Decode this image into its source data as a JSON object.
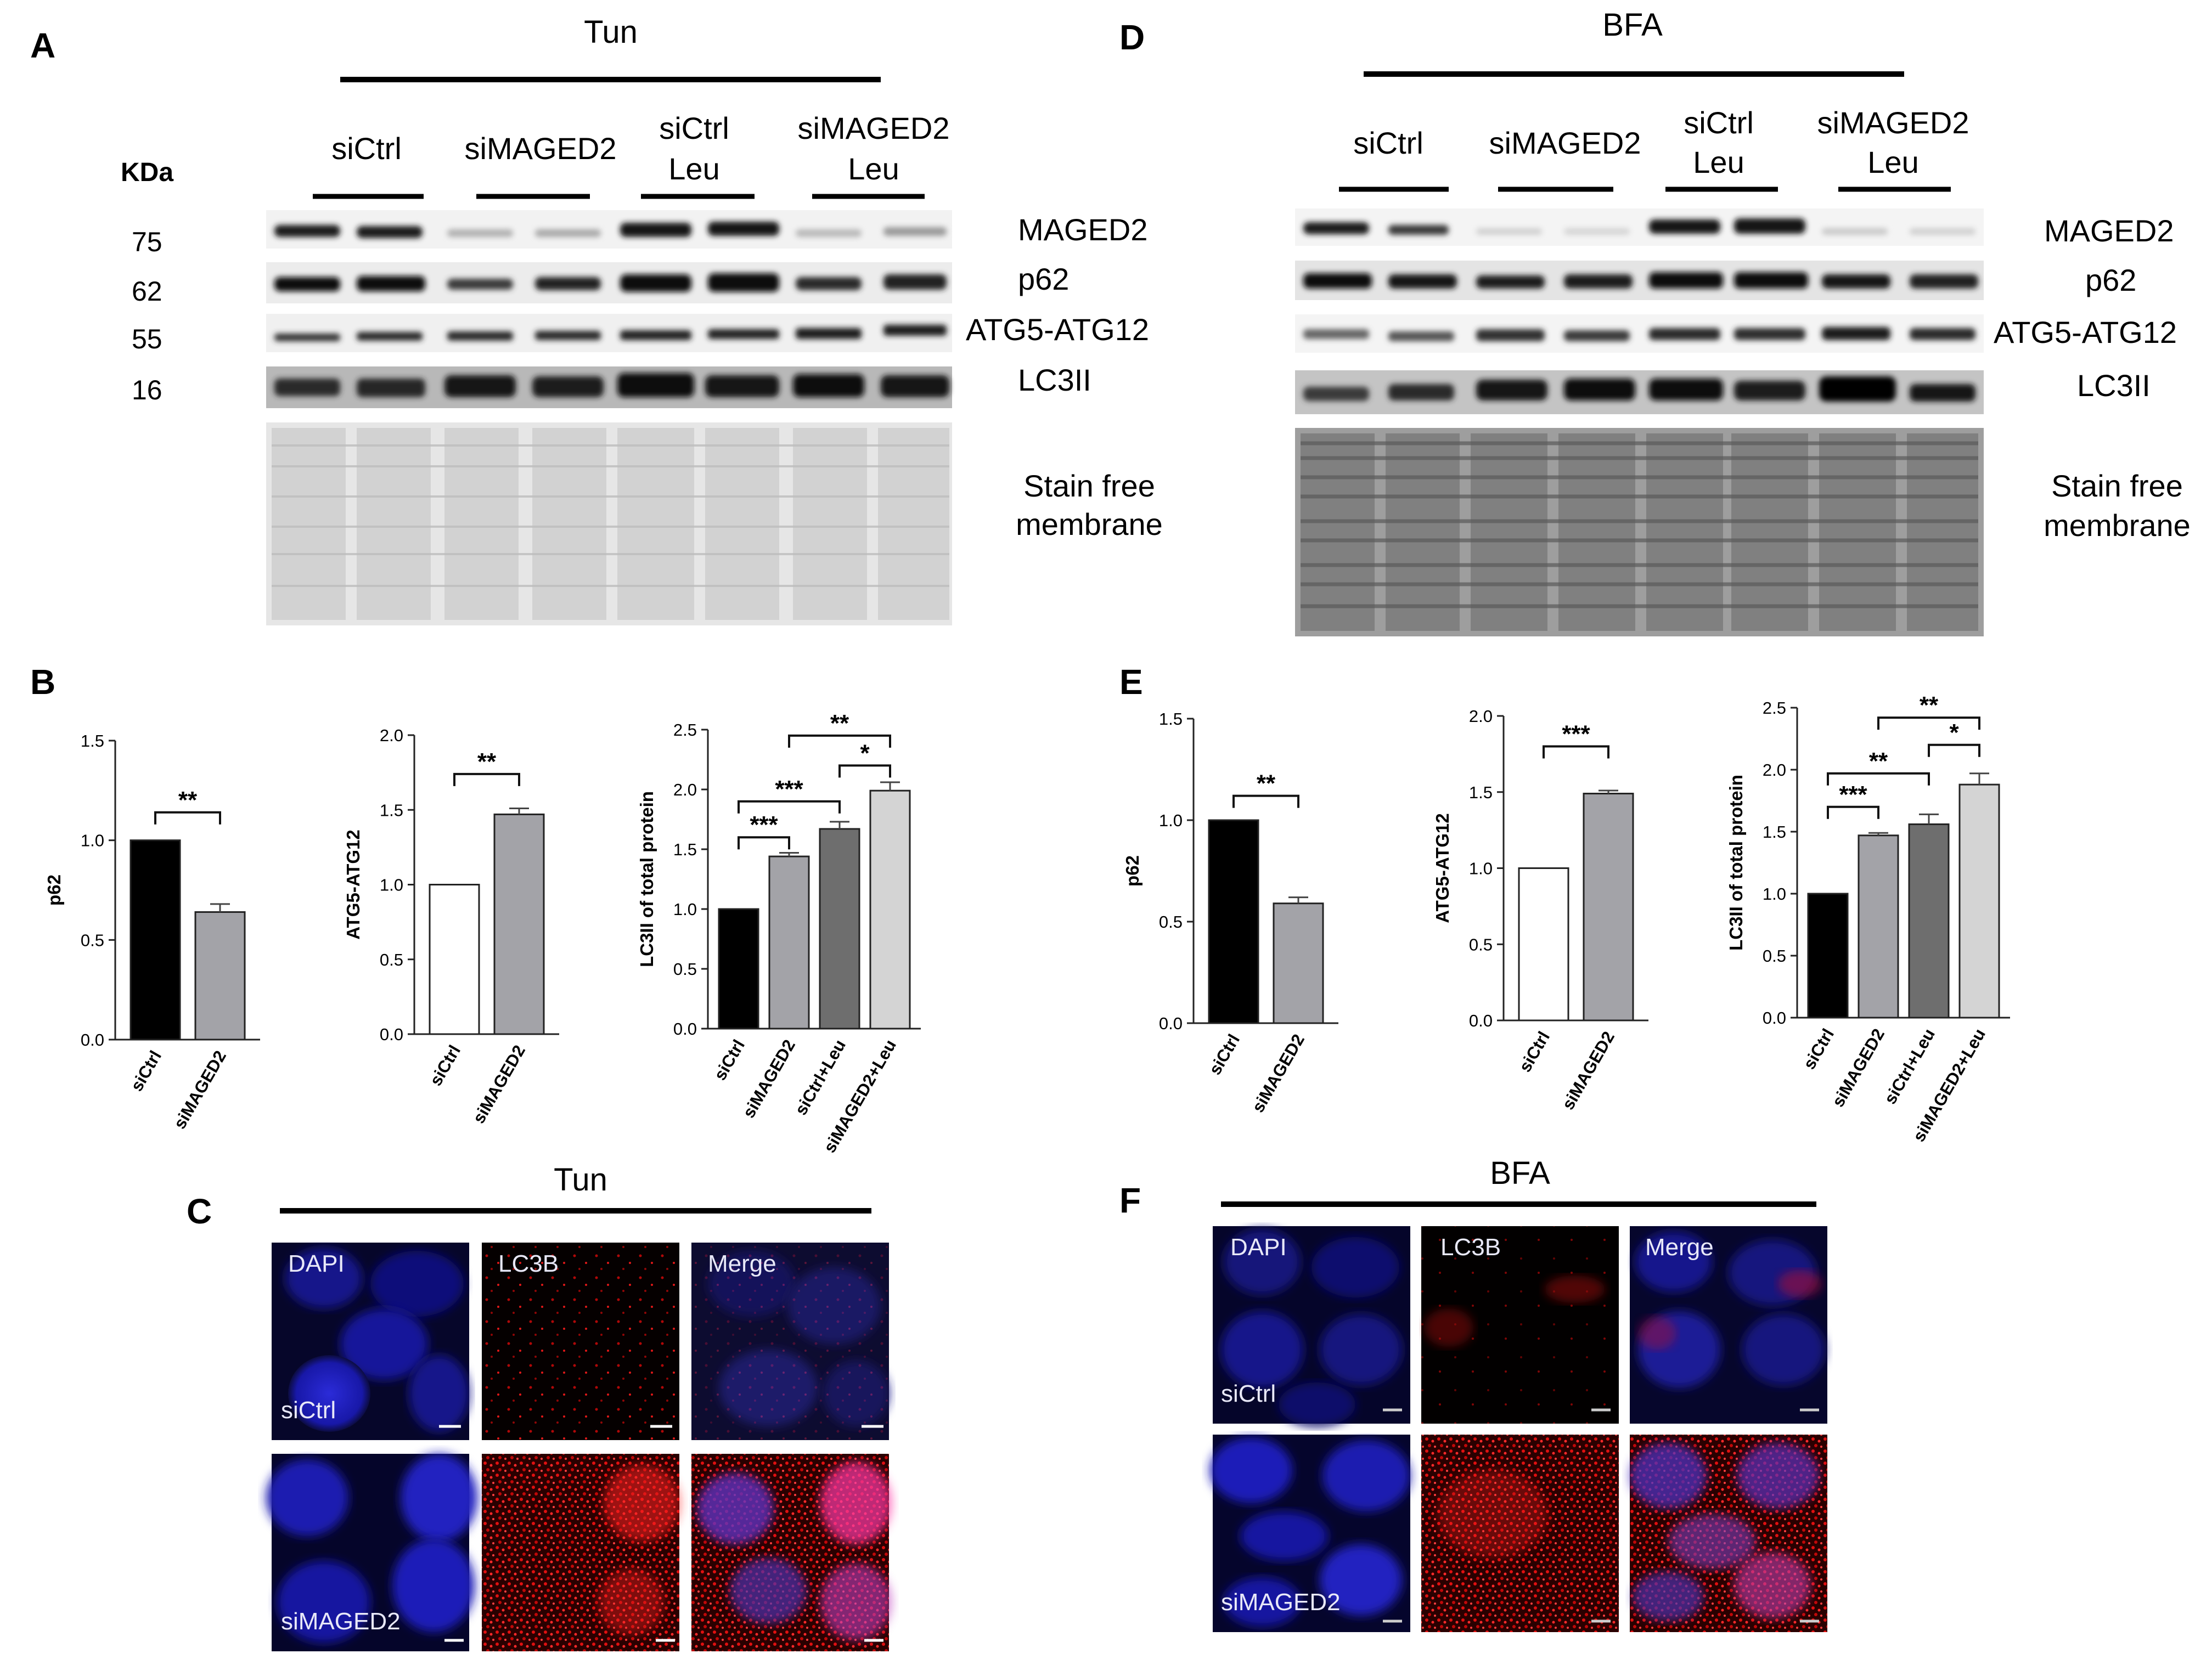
{
  "panel_labels": {
    "A": "A",
    "B": "B",
    "C": "C",
    "D": "D",
    "E": "E",
    "F": "F"
  },
  "treatments": {
    "left": "Tun",
    "right": "BFA"
  },
  "kda_header": "KDa",
  "kda_values": [
    "75",
    "62",
    "55",
    "16"
  ],
  "lane_groups": [
    {
      "line1": "siCtrl",
      "line2": ""
    },
    {
      "line1": "siMAGED2",
      "line2": ""
    },
    {
      "line1": "siCtrl",
      "line2": "Leu"
    },
    {
      "line1": "siMAGED2",
      "line2": "Leu"
    }
  ],
  "blot_labels": [
    "MAGED2",
    "p62",
    "ATG5-ATG12",
    "LC3II"
  ],
  "stain_free": {
    "line1": "Stain free",
    "line2": "membrane"
  },
  "microscopy": {
    "channels": [
      "DAPI",
      "LC3B",
      "Merge"
    ],
    "rows": [
      "siCtrl",
      "siMAGED2"
    ]
  },
  "colors": {
    "black": "#000000",
    "dark_gray": "#6e6e6e",
    "mid_gray": "#a3a3a8",
    "light_gray": "#d4d4d4",
    "white": "#ffffff"
  },
  "chart_data": [
    {
      "id": "B1",
      "type": "bar",
      "ylabel": "p62",
      "ylim": [
        0,
        1.5
      ],
      "yticks": [
        "0.0",
        "0.5",
        "1.0",
        "1.5"
      ],
      "categories": [
        "siCtrl",
        "siMAGED2"
      ],
      "values": [
        1.0,
        0.64
      ],
      "errors": [
        0,
        0.04
      ],
      "fills": [
        "#000000",
        "#a3a3a8"
      ],
      "significance": [
        {
          "from": 0,
          "to": 1,
          "label": "**",
          "y": 1.14
        }
      ]
    },
    {
      "id": "B2",
      "type": "bar",
      "ylabel": "ATG5-ATG12",
      "ylim": [
        0,
        2.0
      ],
      "yticks": [
        "0.0",
        "0.5",
        "1.0",
        "1.5",
        "2.0"
      ],
      "categories": [
        "siCtrl",
        "siMAGED2"
      ],
      "values": [
        1.0,
        1.47
      ],
      "errors": [
        0,
        0.04
      ],
      "fills": [
        "#ffffff",
        "#a3a3a8"
      ],
      "significance": [
        {
          "from": 0,
          "to": 1,
          "label": "**",
          "y": 1.74
        }
      ]
    },
    {
      "id": "B3",
      "type": "bar",
      "ylabel": "LC3II of total protein",
      "ylim": [
        0,
        2.5
      ],
      "yticks": [
        "0.0",
        "0.5",
        "1.0",
        "1.5",
        "2.0",
        "2.5"
      ],
      "categories": [
        "siCtrl",
        "siMAGED2",
        "siCtrl+Leu",
        "siMAGED2+Leu"
      ],
      "values": [
        1.0,
        1.44,
        1.67,
        1.99
      ],
      "errors": [
        0,
        0.03,
        0.06,
        0.07
      ],
      "fills": [
        "#000000",
        "#a3a3a8",
        "#6e6e6e",
        "#d4d4d4"
      ],
      "significance": [
        {
          "from": 0,
          "to": 1,
          "label": "***",
          "y": 1.6
        },
        {
          "from": 0,
          "to": 2,
          "label": "***",
          "y": 1.9
        },
        {
          "from": 2,
          "to": 3,
          "label": "*",
          "y": 2.2
        },
        {
          "from": 1,
          "to": 3,
          "label": "**",
          "y": 2.45
        }
      ]
    },
    {
      "id": "E1",
      "type": "bar",
      "ylabel": "p62",
      "ylim": [
        0,
        1.5
      ],
      "yticks": [
        "0.0",
        "0.5",
        "1.0",
        "1.5"
      ],
      "categories": [
        "siCtrl",
        "siMAGED2"
      ],
      "values": [
        1.0,
        0.59
      ],
      "errors": [
        0,
        0.03
      ],
      "fills": [
        "#000000",
        "#a3a3a8"
      ],
      "significance": [
        {
          "from": 0,
          "to": 1,
          "label": "**",
          "y": 1.12
        }
      ]
    },
    {
      "id": "E2",
      "type": "bar",
      "ylabel": "ATG5-ATG12",
      "ylim": [
        0,
        2.0
      ],
      "yticks": [
        "0.0",
        "0.5",
        "1.0",
        "1.5",
        "2.0"
      ],
      "categories": [
        "siCtrl",
        "siMAGED2"
      ],
      "values": [
        1.0,
        1.49
      ],
      "errors": [
        0,
        0.02
      ],
      "fills": [
        "#ffffff",
        "#a3a3a8"
      ],
      "significance": [
        {
          "from": 0,
          "to": 1,
          "label": "***",
          "y": 1.8
        }
      ]
    },
    {
      "id": "E3",
      "type": "bar",
      "ylabel": "LC3II of total protein",
      "ylim": [
        0,
        2.5
      ],
      "yticks": [
        "0.0",
        "0.5",
        "1.0",
        "1.5",
        "2.0",
        "2.5"
      ],
      "categories": [
        "siCtrl",
        "siMAGED2",
        "siCtrl+Leu",
        "siMAGED2+Leu"
      ],
      "values": [
        1.0,
        1.47,
        1.56,
        1.88
      ],
      "errors": [
        0,
        0.02,
        0.08,
        0.09
      ],
      "fills": [
        "#000000",
        "#a3a3a8",
        "#6e6e6e",
        "#d4d4d4"
      ],
      "significance": [
        {
          "from": 0,
          "to": 1,
          "label": "***",
          "y": 1.7
        },
        {
          "from": 0,
          "to": 2,
          "label": "**",
          "y": 1.97
        },
        {
          "from": 2,
          "to": 3,
          "label": "*",
          "y": 2.2
        },
        {
          "from": 1,
          "to": 3,
          "label": "**",
          "y": 2.42
        }
      ]
    }
  ]
}
